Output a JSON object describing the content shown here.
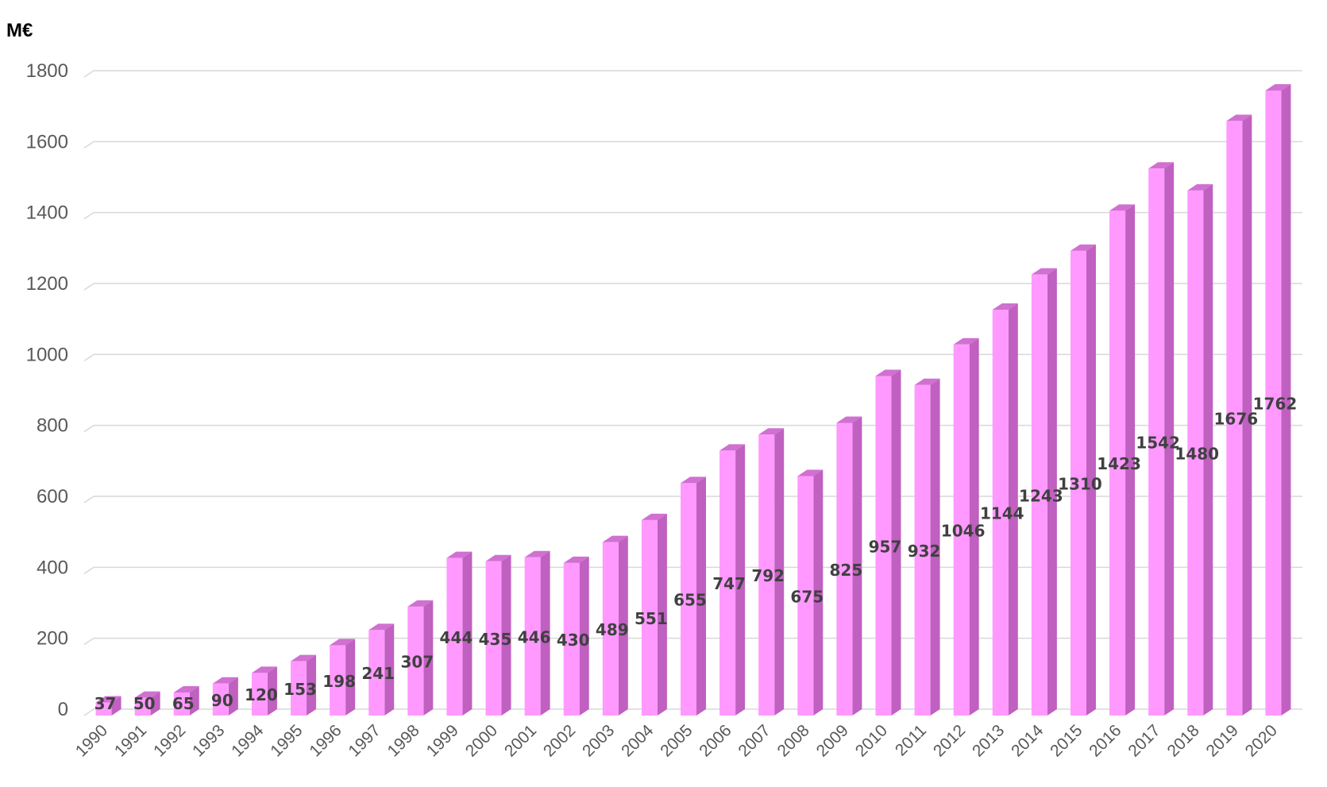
{
  "chart_data": {
    "type": "bar",
    "unit_label": "M€",
    "categories": [
      "1990",
      "1991",
      "1992",
      "1993",
      "1994",
      "1995",
      "1996",
      "1997",
      "1998",
      "1999",
      "2000",
      "2001",
      "2002",
      "2003",
      "2004",
      "2005",
      "2006",
      "2007",
      "2008",
      "2009",
      "2010",
      "2011",
      "2012",
      "2013",
      "2014",
      "2015",
      "2016",
      "2017",
      "2018",
      "2019",
      "2020"
    ],
    "values": [
      37,
      50,
      65,
      90,
      120,
      153,
      198,
      241,
      307,
      444,
      435,
      446,
      430,
      489,
      551,
      655,
      747,
      792,
      675,
      825,
      957,
      932,
      1046,
      1144,
      1243,
      1310,
      1423,
      1542,
      1480,
      1676,
      1762
    ],
    "ylim": [
      0,
      1800
    ],
    "yticks": [
      0,
      200,
      400,
      600,
      800,
      1000,
      1200,
      1400,
      1600,
      1800
    ],
    "grid": true,
    "data_labels": true,
    "style": "3d-column",
    "colors": {
      "bar_front": "#ff99ff",
      "bar_side": "#c060c0",
      "bar_top": "#d070d0",
      "gridline": "#d9d9d9"
    }
  }
}
